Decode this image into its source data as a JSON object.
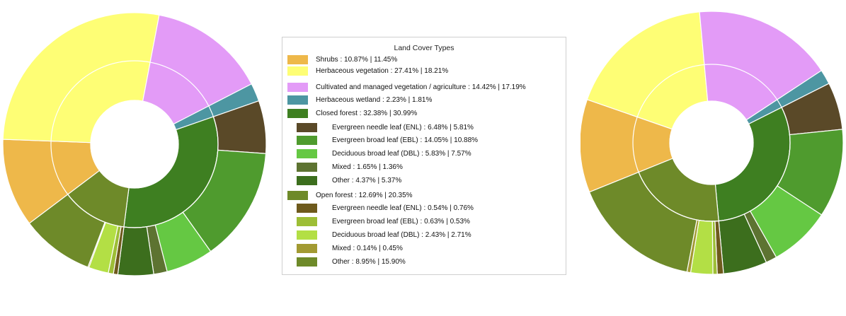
{
  "legend_title": "Land Cover Types",
  "legend_items": [
    {
      "label": "Shrubs : 10.87% | 11.45%",
      "color": "#eeb84a",
      "level": 0
    },
    {
      "label": "Herbaceous vegetation : 27.41% | 18.21%",
      "color": "#fefe75",
      "level": 0
    },
    {
      "label": "Cultivated and managed vegetation / agriculture : 14.42% | 17.19%",
      "color": "#e39bf7",
      "level": 0
    },
    {
      "label": "Herbaceous wetland : 2.23% | 1.81%",
      "color": "#4d96a2",
      "level": 0
    },
    {
      "label": "Closed forest : 32.38% | 30.99%",
      "color": "#3e7f21",
      "level": 0
    },
    {
      "label": "Evergreen needle leaf (ENL) : 6.48% | 5.81%",
      "color": "#5a4928",
      "level": 1
    },
    {
      "label": "Evergreen broad leaf (EBL) : 14.05% | 10.88%",
      "color": "#4f9b2e",
      "level": 1
    },
    {
      "label": "Deciduous broad leaf (DBL) : 5.83% | 7.57%",
      "color": "#65c843",
      "level": 1
    },
    {
      "label": "Mixed : 1.65% | 1.36%",
      "color": "#5d7331",
      "level": 1
    },
    {
      "label": "Other : 4.37% | 5.37%",
      "color": "#3c6e1d",
      "level": 1
    },
    {
      "label": "Open forest : 12.69% | 20.35%",
      "color": "#6e8a29",
      "level": 0
    },
    {
      "label": "Evergreen needle leaf (ENL) : 0.54% | 0.76%",
      "color": "#6e5a1c",
      "level": 1
    },
    {
      "label": "Evergreen broad leaf (EBL) : 0.63% | 0.53%",
      "color": "#9dbe36",
      "level": 1
    },
    {
      "label": "Deciduous broad leaf (DBL) : 2.43% | 2.71%",
      "color": "#b3df45",
      "level": 1
    },
    {
      "label": "Mixed : 0.14% | 0.45%",
      "color": "#a29a32",
      "level": 1
    },
    {
      "label": "Other : 8.95% | 15.90%",
      "color": "#6e8a29",
      "level": 1
    }
  ],
  "chart_data": [
    {
      "type": "sunburst",
      "start_angle_deg": 143,
      "categories": [
        {
          "name": "Shrubs",
          "value": 10.87,
          "color": "#eeb84a"
        },
        {
          "name": "Herbaceous vegetation",
          "value": 27.41,
          "color": "#fefe75"
        },
        {
          "name": "Cultivated and managed vegetation / agriculture",
          "value": 14.42,
          "color": "#e39bf7"
        },
        {
          "name": "Herbaceous wetland",
          "value": 2.23,
          "color": "#4d96a2"
        },
        {
          "name": "Closed forest",
          "value": 32.38,
          "color": "#3e7f21",
          "children": [
            {
              "name": "Evergreen needle leaf (ENL)",
              "value": 6.48,
              "color": "#5a4928"
            },
            {
              "name": "Evergreen broad leaf (EBL)",
              "value": 14.05,
              "color": "#4f9b2e"
            },
            {
              "name": "Deciduous broad leaf (DBL)",
              "value": 5.83,
              "color": "#65c843"
            },
            {
              "name": "Mixed",
              "value": 1.65,
              "color": "#5d7331"
            },
            {
              "name": "Other",
              "value": 4.37,
              "color": "#3c6e1d"
            }
          ]
        },
        {
          "name": "Open forest",
          "value": 12.69,
          "color": "#6e8a29",
          "children": [
            {
              "name": "Evergreen needle leaf (ENL)",
              "value": 0.54,
              "color": "#6e5a1c"
            },
            {
              "name": "Evergreen broad leaf (EBL)",
              "value": 0.63,
              "color": "#9dbe36"
            },
            {
              "name": "Deciduous broad leaf (DBL)",
              "value": 2.43,
              "color": "#b3df45"
            },
            {
              "name": "Mixed",
              "value": 0.14,
              "color": "#a29a32"
            },
            {
              "name": "Other",
              "value": 8.95,
              "color": "#6e8a29"
            }
          ]
        }
      ]
    },
    {
      "type": "sunburst",
      "start_angle_deg": 158,
      "categories": [
        {
          "name": "Shrubs",
          "value": 11.45,
          "color": "#eeb84a"
        },
        {
          "name": "Herbaceous vegetation",
          "value": 18.21,
          "color": "#fefe75"
        },
        {
          "name": "Cultivated and managed vegetation / agriculture",
          "value": 17.19,
          "color": "#e39bf7"
        },
        {
          "name": "Herbaceous wetland",
          "value": 1.81,
          "color": "#4d96a2"
        },
        {
          "name": "Closed forest",
          "value": 30.99,
          "color": "#3e7f21",
          "children": [
            {
              "name": "Evergreen needle leaf (ENL)",
              "value": 5.81,
              "color": "#5a4928"
            },
            {
              "name": "Evergreen broad leaf (EBL)",
              "value": 10.88,
              "color": "#4f9b2e"
            },
            {
              "name": "Deciduous broad leaf (DBL)",
              "value": 7.57,
              "color": "#65c843"
            },
            {
              "name": "Mixed",
              "value": 1.36,
              "color": "#5d7331"
            },
            {
              "name": "Other",
              "value": 5.37,
              "color": "#3c6e1d"
            }
          ]
        },
        {
          "name": "Open forest",
          "value": 20.35,
          "color": "#6e8a29",
          "children": [
            {
              "name": "Evergreen needle leaf (ENL)",
              "value": 0.76,
              "color": "#6e5a1c"
            },
            {
              "name": "Evergreen broad leaf (EBL)",
              "value": 0.53,
              "color": "#9dbe36"
            },
            {
              "name": "Deciduous broad leaf (DBL)",
              "value": 2.71,
              "color": "#b3df45"
            },
            {
              "name": "Mixed",
              "value": 0.45,
              "color": "#a29a32"
            },
            {
              "name": "Other",
              "value": 15.9,
              "color": "#6e8a29"
            }
          ]
        }
      ]
    }
  ]
}
